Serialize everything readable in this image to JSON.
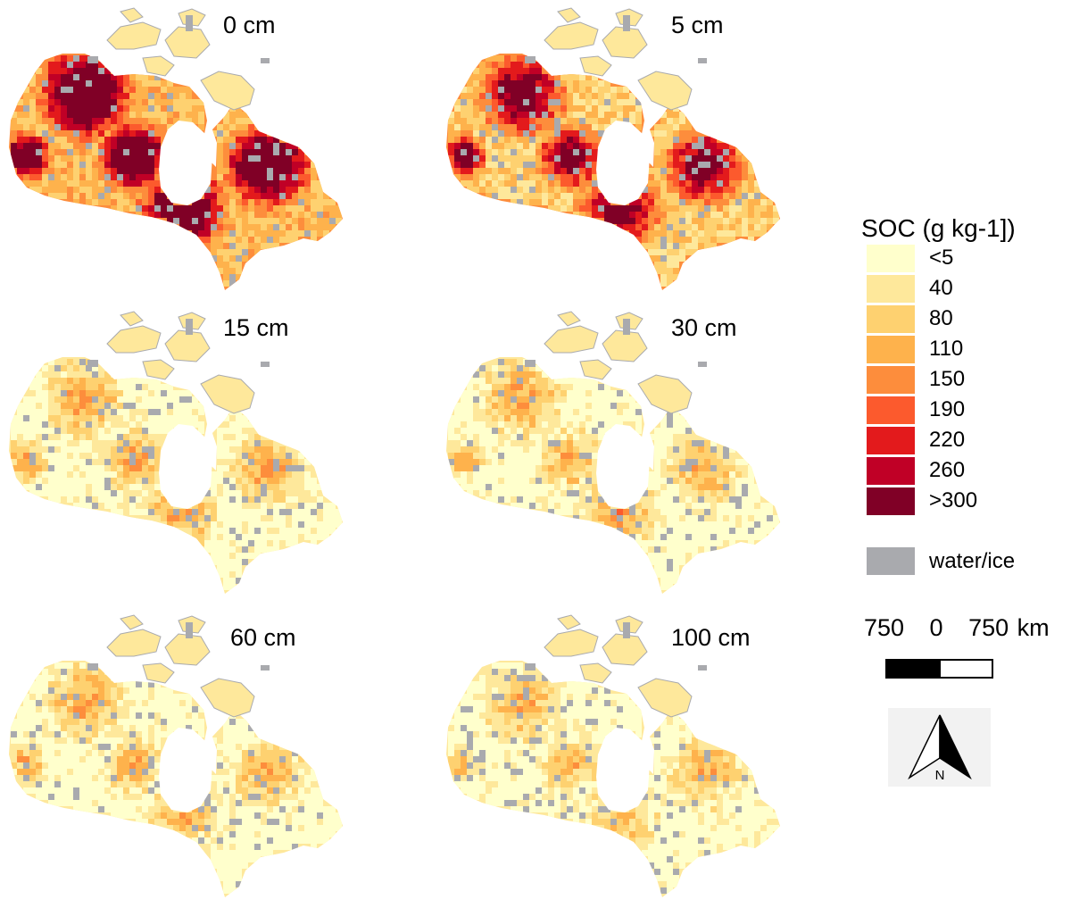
{
  "panels": [
    {
      "label": "0 cm",
      "intensity": 1.0
    },
    {
      "label": "5 cm",
      "intensity": 0.78
    },
    {
      "label": "15 cm",
      "intensity": 0.4
    },
    {
      "label": "30 cm",
      "intensity": 0.38
    },
    {
      "label": "60 cm",
      "intensity": 0.36
    },
    {
      "label": "100 cm",
      "intensity": 0.34
    }
  ],
  "legend": {
    "title": "SOC (g kg-1])",
    "classes": [
      {
        "label": "<5",
        "color": "#ffffcc"
      },
      {
        "label": "40",
        "color": "#fee89b"
      },
      {
        "label": "80",
        "color": "#fed170"
      },
      {
        "label": "110",
        "color": "#feb24c"
      },
      {
        "label": "150",
        "color": "#fd8d3c"
      },
      {
        "label": "190",
        "color": "#fc5a2d"
      },
      {
        "label": "220",
        "color": "#e31a1c"
      },
      {
        "label": "260",
        "color": "#c00026"
      },
      {
        "label": ">300",
        "color": "#800026"
      }
    ],
    "water_label": "water/ice",
    "water_color": "#a9aaae"
  },
  "scale": {
    "text": "750   0   750 km"
  },
  "north_arrow": {
    "letter": "N"
  }
}
